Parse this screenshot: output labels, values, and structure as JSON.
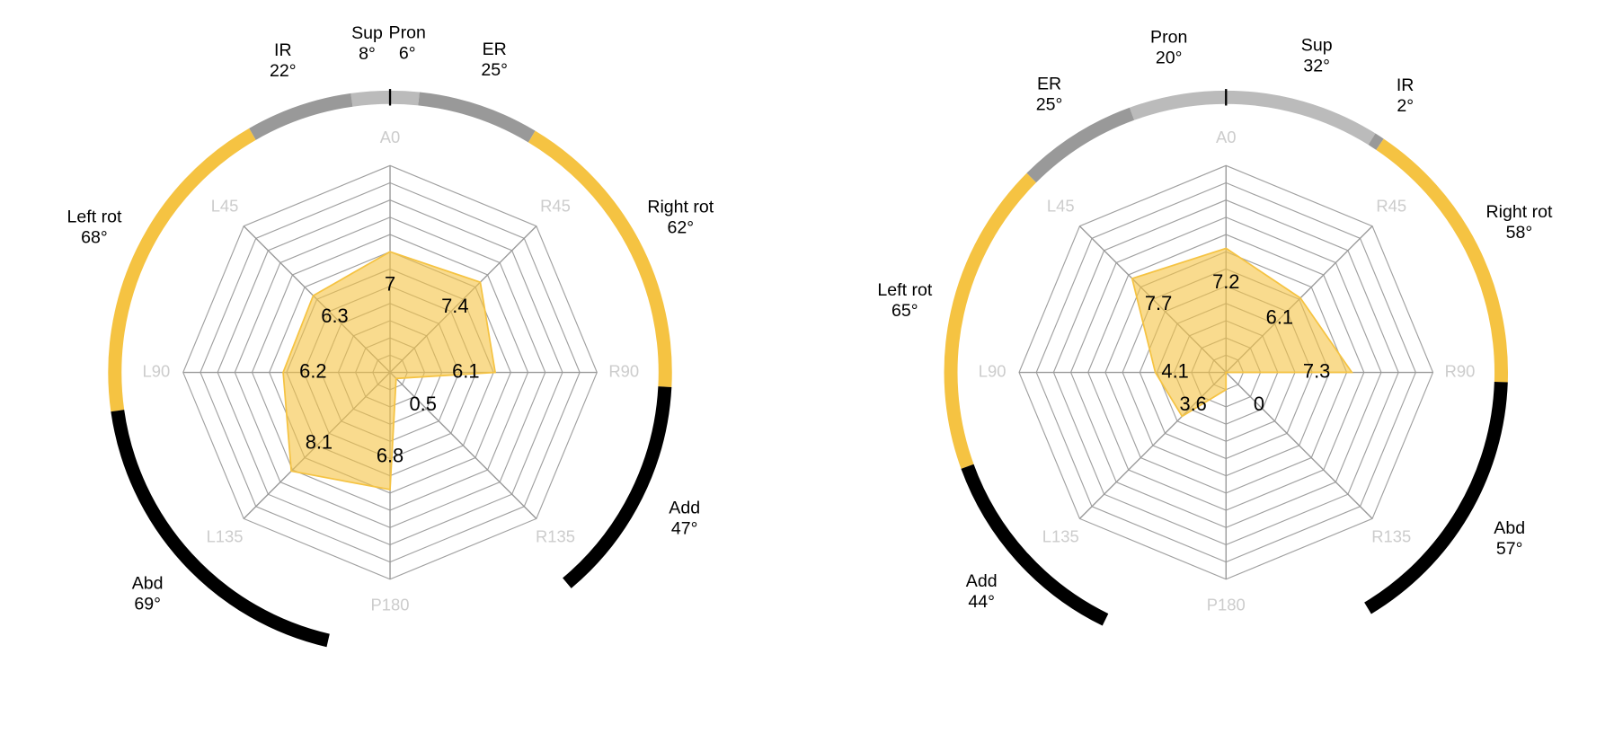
{
  "chart_data": [
    {
      "type": "radar",
      "categories": [
        "A0",
        "R45",
        "R90",
        "R135",
        "P180",
        "L135",
        "L90",
        "L45"
      ],
      "values": [
        7,
        7.4,
        6.1,
        0.5,
        6.8,
        8.1,
        6.2,
        6.3
      ],
      "color": "#f5c342",
      "rlim": [
        0,
        12
      ],
      "rticks": [
        1,
        2,
        3,
        4,
        5,
        6,
        7,
        8,
        9,
        10,
        11,
        12
      ],
      "ring_right": [
        {
          "name": "Pron",
          "value": 6,
          "label": "6°",
          "color": "#bbbbbb"
        },
        {
          "name": "ER",
          "value": 25,
          "label": "25°",
          "color": "#999999"
        },
        {
          "name": "Right rot",
          "value": 62,
          "label": "62°",
          "color": "#f5c342"
        },
        {
          "name": "Add",
          "value": 47,
          "label": "47°",
          "color": "#000000"
        }
      ],
      "ring_left": [
        {
          "name": "Sup",
          "value": 8,
          "label": "8°",
          "color": "#bbbbbb"
        },
        {
          "name": "IR",
          "value": 22,
          "label": "22°",
          "color": "#999999"
        },
        {
          "name": "Left rot",
          "value": 68,
          "label": "68°",
          "color": "#f5c342"
        },
        {
          "name": "Abd",
          "value": 69,
          "label": "69°",
          "color": "#000000"
        }
      ]
    },
    {
      "type": "radar",
      "categories": [
        "A0",
        "R45",
        "R90",
        "R135",
        "P180",
        "L135",
        "L90",
        "L45"
      ],
      "values": [
        7.2,
        6.1,
        7.3,
        0,
        1,
        3.6,
        4.1,
        7.7
      ],
      "value_labels": [
        "7.2",
        "6.1",
        "7.3",
        "0",
        null,
        "3.6",
        "4.1",
        "7.7"
      ],
      "color": "#f5c342",
      "rlim": [
        0,
        12
      ],
      "rticks": [
        1,
        2,
        3,
        4,
        5,
        6,
        7,
        8,
        9,
        10,
        11,
        12
      ],
      "ring_right": [
        {
          "name": "Sup",
          "value": 32,
          "label": "32°",
          "color": "#bbbbbb"
        },
        {
          "name": "IR",
          "value": 2,
          "label": "2°",
          "color": "#999999"
        },
        {
          "name": "Right rot",
          "value": 58,
          "label": "58°",
          "color": "#f5c342"
        },
        {
          "name": "Abd",
          "value": 57,
          "label": "57°",
          "color": "#000000"
        }
      ],
      "ring_left": [
        {
          "name": "Pron",
          "value": 20,
          "label": "20°",
          "color": "#bbbbbb"
        },
        {
          "name": "ER",
          "value": 25,
          "label": "25°",
          "color": "#999999"
        },
        {
          "name": "Left rot",
          "value": 65,
          "label": "65°",
          "color": "#f5c342"
        },
        {
          "name": "Add",
          "value": 44,
          "label": "44°",
          "color": "#000000"
        }
      ]
    }
  ]
}
